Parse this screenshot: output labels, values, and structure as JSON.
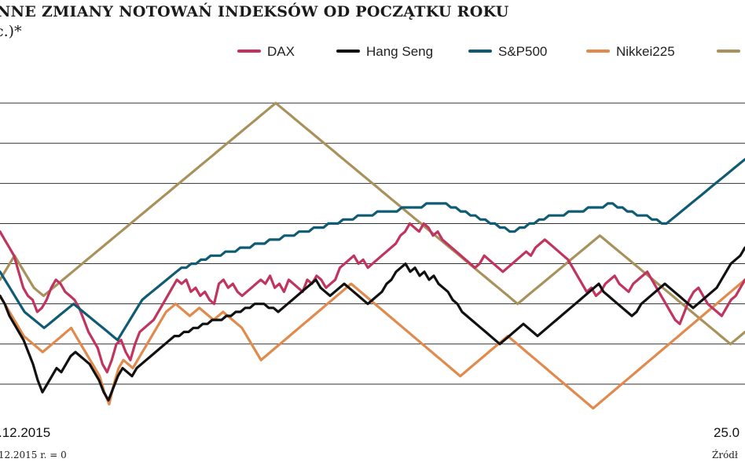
{
  "chart_data": {
    "type": "line",
    "title": "NNE ZMIANY NOTOWAŃ INDEKSÓW OD POCZĄTKU ROKU",
    "subtitle": "c.)*",
    "x_start_label": ".12.2015",
    "x_end_label": "25.0",
    "footnote": ".12.2015 r. = 0",
    "source": "Źródł",
    "grid": true,
    "legend_position": "top",
    "series": [
      {
        "name": "DAX",
        "color": "#c0345f",
        "values": [
          18,
          16,
          14,
          12,
          8,
          4,
          2,
          1,
          -2,
          -1,
          1,
          4,
          6,
          5,
          3,
          2,
          1,
          -1,
          -4,
          -7,
          -9,
          -11,
          -15,
          -17,
          -14,
          -10,
          -9,
          -12,
          -14,
          -10,
          -7,
          -6,
          -5,
          -4,
          -2,
          0,
          2,
          4,
          6,
          5,
          6,
          3,
          4,
          2,
          3,
          1,
          0,
          5,
          6,
          4,
          5,
          3,
          2,
          3,
          4,
          5,
          6,
          5,
          7,
          4,
          5,
          3,
          6,
          5,
          4,
          3,
          6,
          5,
          7,
          6,
          4,
          5,
          6,
          9,
          10,
          11,
          12,
          10,
          11,
          9,
          10,
          11,
          12,
          13,
          14,
          15,
          17,
          18,
          20,
          19,
          18,
          20,
          19,
          17,
          18,
          16,
          15,
          14,
          13,
          12,
          11,
          10,
          9,
          10,
          12,
          11,
          10,
          9,
          8,
          9,
          10,
          11,
          12,
          13,
          12,
          14,
          15,
          16,
          15,
          14,
          13,
          12,
          11,
          9,
          7,
          5,
          3,
          4,
          2,
          3,
          5,
          6,
          7,
          5,
          4,
          3,
          5,
          6,
          7,
          8,
          6,
          4,
          2,
          0,
          -2,
          -4,
          -5,
          -2,
          1,
          3,
          4,
          2,
          0,
          -1,
          -2,
          -3,
          -1,
          1,
          2,
          4,
          6
        ],
        "label_y": 0
      },
      {
        "name": "Hang Seng",
        "color": "#111111",
        "values": [
          2,
          0,
          -3,
          -5,
          -7,
          -9,
          -12,
          -15,
          -19,
          -22,
          -20,
          -18,
          -16,
          -17,
          -15,
          -13,
          -12,
          -13,
          -14,
          -15,
          -17,
          -19,
          -22,
          -24,
          -21,
          -18,
          -16,
          -17,
          -18,
          -16,
          -15,
          -14,
          -13,
          -12,
          -11,
          -10,
          -9,
          -8,
          -8,
          -7,
          -7,
          -6,
          -6,
          -5,
          -5,
          -4,
          -4,
          -4,
          -3,
          -3,
          -2,
          -2,
          -1,
          -1,
          0,
          0,
          0,
          -1,
          -1,
          -2,
          -1,
          0,
          1,
          2,
          3,
          4,
          5,
          6,
          4,
          3,
          2,
          3,
          4,
          5,
          4,
          3,
          2,
          1,
          0,
          1,
          2,
          3,
          5,
          6,
          8,
          9,
          10,
          8,
          9,
          7,
          8,
          6,
          7,
          5,
          4,
          3,
          1,
          0,
          -2,
          -3,
          -4,
          -5,
          -6,
          -7,
          -8,
          -9,
          -10,
          -9,
          -8,
          -7,
          -6,
          -5,
          -6,
          -7,
          -8,
          -7,
          -6,
          -5,
          -4,
          -3,
          -2,
          -1,
          0,
          1,
          2,
          3,
          4,
          5,
          3,
          2,
          1,
          0,
          -1,
          -2,
          -3,
          -2,
          0,
          1,
          2,
          3,
          4,
          5,
          4,
          3,
          2,
          1,
          0,
          -1,
          0,
          1,
          2,
          3,
          4,
          6,
          8,
          10,
          11,
          12,
          14
        ],
        "label_y": 0
      },
      {
        "name": "S&P500",
        "color": "#0f5b73",
        "values": [
          8,
          6,
          4,
          2,
          0,
          -2,
          -3,
          -4,
          -5,
          -6,
          -5,
          -4,
          -3,
          -2,
          -1,
          0,
          -1,
          -2,
          -3,
          -4,
          -5,
          -6,
          -7,
          -8,
          -9,
          -7,
          -5,
          -3,
          -1,
          1,
          2,
          3,
          4,
          5,
          6,
          7,
          8,
          9,
          9,
          10,
          10,
          11,
          11,
          12,
          12,
          12,
          13,
          13,
          13,
          14,
          14,
          14,
          15,
          15,
          15,
          16,
          16,
          16,
          17,
          17,
          17,
          18,
          18,
          18,
          19,
          19,
          19,
          20,
          20,
          20,
          21,
          21,
          21,
          22,
          22,
          22,
          22,
          23,
          23,
          23,
          23,
          23,
          24,
          24,
          24,
          24,
          24,
          25,
          25,
          25,
          25,
          25,
          24,
          24,
          23,
          23,
          22,
          22,
          21,
          21,
          20,
          20,
          19,
          19,
          18,
          18,
          19,
          19,
          20,
          20,
          21,
          21,
          22,
          22,
          22,
          22,
          23,
          23,
          23,
          23,
          24,
          24,
          24,
          24,
          25,
          25,
          24,
          24,
          23,
          23,
          22,
          22,
          22,
          21,
          21,
          20,
          20,
          21,
          22,
          23,
          24,
          25,
          26,
          27,
          28,
          29,
          30,
          31,
          32,
          33,
          34,
          35,
          36
        ],
        "label_y": 0
      },
      {
        "name": "Nikkei225",
        "color": "#e08a4d",
        "values": [
          2,
          0,
          -2,
          -4,
          -6,
          -8,
          -9,
          -10,
          -11,
          -12,
          -11,
          -10,
          -9,
          -8,
          -7,
          -6,
          -8,
          -10,
          -12,
          -14,
          -16,
          -18,
          -22,
          -25,
          -20,
          -16,
          -14,
          -15,
          -16,
          -14,
          -12,
          -10,
          -8,
          -6,
          -4,
          -2,
          -1,
          0,
          -1,
          -2,
          -3,
          -2,
          -1,
          -2,
          -3,
          -4,
          -3,
          -2,
          -3,
          -4,
          -5,
          -6,
          -8,
          -10,
          -12,
          -14,
          -13,
          -12,
          -11,
          -10,
          -9,
          -8,
          -7,
          -6,
          -5,
          -4,
          -3,
          -2,
          -1,
          0,
          1,
          2,
          3,
          4,
          5,
          4,
          3,
          2,
          1,
          0,
          -1,
          -2,
          -3,
          -4,
          -5,
          -6,
          -7,
          -8,
          -9,
          -10,
          -11,
          -12,
          -13,
          -14,
          -15,
          -16,
          -17,
          -18,
          -17,
          -16,
          -15,
          -14,
          -13,
          -12,
          -11,
          -10,
          -9,
          -8,
          -9,
          -10,
          -11,
          -12,
          -13,
          -14,
          -15,
          -16,
          -17,
          -18,
          -19,
          -20,
          -21,
          -22,
          -23,
          -24,
          -25,
          -26,
          -25,
          -24,
          -23,
          -22,
          -21,
          -20,
          -19,
          -18,
          -17,
          -16,
          -15,
          -14,
          -13,
          -12,
          -11,
          -10,
          -9,
          -8,
          -7,
          -6,
          -5,
          -4,
          -3,
          -2,
          -1,
          0,
          1,
          2,
          3,
          4,
          5,
          6
        ],
        "label_y": 0
      },
      {
        "name": "",
        "color": "#a8925c",
        "values": [
          6,
          8,
          10,
          12,
          10,
          8,
          6,
          4,
          3,
          2,
          3,
          4,
          5,
          6,
          7,
          8,
          9,
          10,
          11,
          12,
          13,
          14,
          15,
          16,
          17,
          18,
          19,
          20,
          21,
          22,
          23,
          24,
          25,
          26,
          27,
          28,
          29,
          30,
          31,
          32,
          33,
          34,
          35,
          36,
          37,
          38,
          39,
          40,
          41,
          42,
          43,
          44,
          45,
          46,
          47,
          48,
          49,
          50,
          49,
          48,
          47,
          46,
          45,
          44,
          43,
          42,
          41,
          40,
          39,
          38,
          37,
          36,
          35,
          34,
          33,
          32,
          31,
          30,
          29,
          28,
          27,
          26,
          25,
          24,
          23,
          22,
          21,
          20,
          19,
          18,
          17,
          16,
          15,
          14,
          13,
          12,
          11,
          10,
          9,
          8,
          7,
          6,
          5,
          4,
          3,
          2,
          1,
          0,
          1,
          2,
          3,
          4,
          5,
          6,
          7,
          8,
          9,
          10,
          11,
          12,
          13,
          14,
          15,
          16,
          17,
          16,
          15,
          14,
          13,
          12,
          11,
          10,
          9,
          8,
          7,
          6,
          5,
          4,
          3,
          2,
          1,
          0,
          -1,
          -2,
          -3,
          -4,
          -5,
          -6,
          -7,
          -8,
          -9,
          -10,
          -9,
          -8,
          -7
        ],
        "label_y": 0
      }
    ]
  }
}
